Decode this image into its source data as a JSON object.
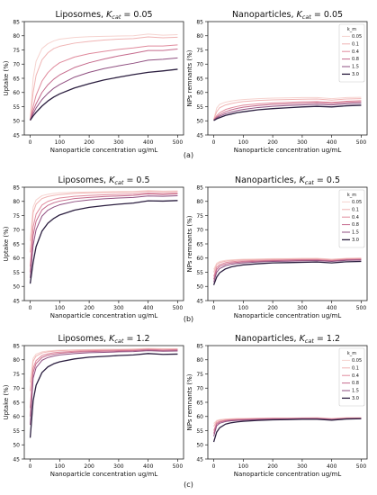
{
  "colors": {
    "series": [
      "#f6d3cf",
      "#f0b4b4",
      "#e08a9c",
      "#c56a8c",
      "#8f4f80",
      "#2b1e3f"
    ],
    "axis": "#222222",
    "text": "#111111"
  },
  "rows": [
    {
      "caption": "(a)",
      "kcat": "0.05"
    },
    {
      "caption": "(b)",
      "kcat": "0.5"
    },
    {
      "caption": "(c)",
      "kcat": "1.2"
    }
  ],
  "chart_data": [
    {
      "type": "line",
      "id": "lipo_a",
      "title": "Liposomes, K_cat = 0.05",
      "title_main": "Liposomes, ",
      "title_sym": "K",
      "title_sub": "cat",
      "title_eq": " = 0.05",
      "xlabel": "Nanoparticle concentration ug/mL",
      "ylabel": "Uptake (%)",
      "xlim": [
        -20,
        520
      ],
      "ylim": [
        45,
        85
      ],
      "xticks": [
        0,
        100,
        200,
        300,
        400,
        500
      ],
      "yticks": [
        45,
        50,
        55,
        60,
        65,
        70,
        75,
        80,
        85
      ],
      "x": [
        0,
        10,
        20,
        40,
        60,
        80,
        100,
        150,
        200,
        250,
        300,
        350,
        400,
        450,
        500
      ],
      "legend": null,
      "series": [
        {
          "values": [
            50.2,
            65,
            71,
            75.5,
            77.2,
            78.2,
            78.8,
            79.4,
            79.7,
            79.8,
            79.9,
            80.0,
            80.6,
            80.2,
            80.4
          ]
        },
        {
          "values": [
            50.2,
            60,
            66,
            71.5,
            74,
            75.5,
            76.3,
            77.4,
            78,
            78.5,
            78.8,
            79.0,
            79.6,
            79.3,
            79.5
          ]
        },
        {
          "values": [
            50.2,
            55,
            59,
            64,
            67,
            69,
            70.5,
            72.5,
            73.7,
            74.5,
            75.2,
            75.7,
            76.4,
            76.4,
            76.8
          ]
        },
        {
          "values": [
            50.2,
            53.5,
            56,
            60,
            62.7,
            64.7,
            66.2,
            68.8,
            70.5,
            71.8,
            72.9,
            73.8,
            74.8,
            74.8,
            75.3
          ]
        },
        {
          "values": [
            50.2,
            52.5,
            54.5,
            57.5,
            59.7,
            61.5,
            62.8,
            65.4,
            67.1,
            68.4,
            69.4,
            70.3,
            71.4,
            71.7,
            72.2
          ]
        },
        {
          "values": [
            50.2,
            51.7,
            53,
            55.2,
            57,
            58.4,
            59.5,
            61.6,
            63.1,
            64.4,
            65.4,
            66.3,
            67.1,
            67.6,
            68.2
          ]
        }
      ]
    },
    {
      "type": "line",
      "id": "nano_a",
      "title": "Nanoparticles, K_cat = 0.05",
      "title_main": "Nanoparticles, ",
      "title_sym": "K",
      "title_sub": "cat",
      "title_eq": " = 0.05",
      "xlabel": "Nanoparticle concentration ug/mL",
      "ylabel": "NPs remnants (%)",
      "xlim": [
        -20,
        520
      ],
      "ylim": [
        45,
        85
      ],
      "xticks": [
        0,
        100,
        200,
        300,
        400,
        500
      ],
      "yticks": [
        45,
        50,
        55,
        60,
        65,
        70,
        75,
        80,
        85
      ],
      "x": [
        0,
        10,
        20,
        40,
        60,
        80,
        100,
        150,
        200,
        250,
        300,
        350,
        400,
        450,
        500
      ],
      "legend": {
        "title": "k_m",
        "labels": [
          "0.05",
          "0.1",
          "0.4",
          "0.8",
          "1.5",
          "3.0"
        ],
        "loc": "upper right"
      },
      "series": [
        {
          "values": [
            50.5,
            54.5,
            55.8,
            56.6,
            57,
            57.3,
            57.5,
            57.8,
            58,
            58.1,
            58.2,
            58.2,
            57.8,
            58.2,
            58.3
          ]
        },
        {
          "values": [
            50.4,
            53.2,
            54.6,
            55.6,
            56.1,
            56.5,
            56.8,
            57.2,
            57.4,
            57.5,
            57.6,
            57.7,
            57.3,
            57.7,
            57.8
          ]
        },
        {
          "values": [
            50.3,
            51.8,
            52.8,
            54,
            54.6,
            55.1,
            55.5,
            56,
            56.3,
            56.5,
            56.7,
            56.8,
            56.5,
            56.9,
            57.1
          ]
        },
        {
          "values": [
            50.2,
            51.3,
            52.1,
            53.2,
            53.9,
            54.4,
            54.8,
            55.4,
            55.8,
            56,
            56.2,
            56.4,
            56.1,
            56.5,
            56.7
          ]
        },
        {
          "values": [
            50.2,
            51,
            51.6,
            52.5,
            53.1,
            53.6,
            54,
            54.7,
            55.1,
            55.4,
            55.6,
            55.8,
            55.6,
            56,
            56.2
          ]
        },
        {
          "values": [
            50.1,
            50.7,
            51.1,
            51.9,
            52.4,
            52.9,
            53.2,
            53.9,
            54.3,
            54.6,
            54.9,
            55.1,
            54.9,
            55.3,
            55.5
          ]
        }
      ]
    },
    {
      "type": "line",
      "id": "lipo_b",
      "title": "Liposomes, K_cat = 0.5",
      "title_main": "Liposomes, ",
      "title_sym": "K",
      "title_sub": "cat",
      "title_eq": " = 0.5",
      "xlabel": "Nanoparticle concentration ug/mL",
      "ylabel": "Uptake (%)",
      "xlim": [
        -20,
        520
      ],
      "ylim": [
        45,
        85
      ],
      "xticks": [
        0,
        100,
        200,
        300,
        400,
        500
      ],
      "yticks": [
        45,
        50,
        55,
        60,
        65,
        70,
        75,
        80,
        85
      ],
      "x": [
        0,
        10,
        20,
        40,
        60,
        80,
        100,
        150,
        200,
        250,
        300,
        350,
        400,
        450,
        500
      ],
      "legend": null,
      "series": [
        {
          "values": [
            66,
            78,
            80.5,
            82,
            82.5,
            82.8,
            83,
            83.2,
            83.3,
            83.4,
            83.5,
            83.5,
            83.8,
            83.6,
            83.7
          ]
        },
        {
          "values": [
            62,
            76,
            79,
            81,
            81.7,
            82.1,
            82.4,
            82.8,
            83,
            83.1,
            83.2,
            83.3,
            83.6,
            83.4,
            83.5
          ]
        },
        {
          "values": [
            57,
            71,
            75.5,
            78.7,
            80,
            80.7,
            81.2,
            81.8,
            82.1,
            82.3,
            82.5,
            82.6,
            83,
            82.8,
            83
          ]
        },
        {
          "values": [
            55,
            68,
            73,
            77,
            78.6,
            79.5,
            80.1,
            81,
            81.4,
            81.7,
            81.9,
            82.1,
            82.6,
            82.4,
            82.6
          ]
        },
        {
          "values": [
            53,
            64.5,
            70,
            74.8,
            76.9,
            78,
            78.8,
            79.9,
            80.5,
            80.9,
            81.2,
            81.4,
            81.9,
            81.8,
            82
          ]
        },
        {
          "values": [
            51,
            58.5,
            64,
            69.5,
            72.3,
            74,
            75.2,
            76.9,
            77.9,
            78.5,
            79,
            79.4,
            80.2,
            80.1,
            80.3
          ]
        }
      ]
    },
    {
      "type": "line",
      "id": "nano_b",
      "title": "Nanoparticles, K_cat = 0.5",
      "title_main": "Nanoparticles, ",
      "title_sym": "K",
      "title_sub": "cat",
      "title_eq": " = 0.5",
      "xlabel": "Nanoparticle concentration ug/mL",
      "ylabel": "NPs remnants (%)",
      "xlim": [
        -20,
        520
      ],
      "ylim": [
        45,
        85
      ],
      "xticks": [
        0,
        100,
        200,
        300,
        400,
        500
      ],
      "yticks": [
        45,
        50,
        55,
        60,
        65,
        70,
        75,
        80,
        85
      ],
      "x": [
        0,
        10,
        20,
        40,
        60,
        80,
        100,
        150,
        200,
        250,
        300,
        350,
        400,
        450,
        500
      ],
      "legend": {
        "title": "k_m",
        "labels": [
          "0.05",
          "0.1",
          "0.4",
          "0.8",
          "1.5",
          "3.0"
        ],
        "loc": "upper right"
      },
      "series": [
        {
          "values": [
            56,
            58.2,
            58.8,
            59.2,
            59.4,
            59.5,
            59.6,
            59.7,
            59.8,
            59.8,
            59.9,
            59.9,
            59.6,
            59.9,
            60
          ]
        },
        {
          "values": [
            55,
            57.7,
            58.4,
            58.9,
            59.1,
            59.3,
            59.4,
            59.5,
            59.6,
            59.7,
            59.7,
            59.8,
            59.5,
            59.8,
            59.9
          ]
        },
        {
          "values": [
            53.5,
            56.8,
            57.7,
            58.4,
            58.7,
            58.9,
            59,
            59.2,
            59.3,
            59.4,
            59.5,
            59.5,
            59.2,
            59.6,
            59.7
          ]
        },
        {
          "values": [
            52.5,
            56,
            57.1,
            57.9,
            58.3,
            58.5,
            58.7,
            58.9,
            59.1,
            59.2,
            59.3,
            59.3,
            59,
            59.4,
            59.5
          ]
        },
        {
          "values": [
            51.5,
            55,
            56.3,
            57.3,
            57.8,
            58.1,
            58.3,
            58.6,
            58.8,
            58.9,
            59,
            59.1,
            58.8,
            59.2,
            59.3
          ]
        },
        {
          "values": [
            50.5,
            53.3,
            54.8,
            56.2,
            56.9,
            57.3,
            57.6,
            58,
            58.3,
            58.4,
            58.5,
            58.6,
            58.3,
            58.7,
            58.8
          ]
        }
      ]
    },
    {
      "type": "line",
      "id": "lipo_c",
      "title": "Liposomes, K_cat = 1.2",
      "title_main": "Liposomes, ",
      "title_sym": "K",
      "title_sub": "cat",
      "title_eq": " = 1.2",
      "xlabel": "Nanoparticle concentration ug/mL",
      "ylabel": "Uptake (%)",
      "xlim": [
        -20,
        520
      ],
      "ylim": [
        45,
        85
      ],
      "xticks": [
        0,
        100,
        200,
        300,
        400,
        500
      ],
      "yticks": [
        45,
        50,
        55,
        60,
        65,
        70,
        75,
        80,
        85
      ],
      "x": [
        0,
        10,
        20,
        40,
        60,
        80,
        100,
        150,
        200,
        250,
        300,
        350,
        400,
        450,
        500
      ],
      "legend": null,
      "series": [
        {
          "values": [
            72,
            80.5,
            82,
            82.8,
            83.1,
            83.3,
            83.4,
            83.5,
            83.6,
            83.7,
            83.7,
            83.8,
            84,
            83.9,
            83.9
          ]
        },
        {
          "values": [
            69,
            79.5,
            81.3,
            82.4,
            82.8,
            83,
            83.2,
            83.4,
            83.5,
            83.6,
            83.6,
            83.7,
            83.9,
            83.8,
            83.8
          ]
        },
        {
          "values": [
            63,
            77,
            79.7,
            81.5,
            82.1,
            82.5,
            82.7,
            83,
            83.2,
            83.3,
            83.4,
            83.4,
            83.7,
            83.5,
            83.6
          ]
        },
        {
          "values": [
            60,
            75.5,
            78.7,
            80.8,
            81.6,
            82,
            82.3,
            82.7,
            82.9,
            83,
            83.1,
            83.2,
            83.5,
            83.3,
            83.4
          ]
        },
        {
          "values": [
            57,
            73.5,
            77.2,
            79.8,
            80.8,
            81.3,
            81.7,
            82.2,
            82.5,
            82.6,
            82.8,
            82.9,
            83.2,
            83,
            83.1
          ]
        },
        {
          "values": [
            52.5,
            65.5,
            71,
            75.5,
            77.5,
            78.6,
            79.3,
            80.3,
            80.9,
            81.2,
            81.5,
            81.7,
            82.2,
            81.9,
            82
          ]
        }
      ]
    },
    {
      "type": "line",
      "id": "nano_c",
      "title": "Nanoparticles, K_cat = 1.2",
      "title_main": "Nanoparticles, ",
      "title_sym": "K",
      "title_sub": "cat",
      "title_eq": " = 1.2",
      "xlabel": "Nanoparticle concentration ug/mL",
      "ylabel": "NPs remnants (%)",
      "xlim": [
        -20,
        520
      ],
      "ylim": [
        45,
        85
      ],
      "xticks": [
        0,
        100,
        200,
        300,
        400,
        500
      ],
      "yticks": [
        45,
        50,
        55,
        60,
        65,
        70,
        75,
        80,
        85
      ],
      "x": [
        0,
        10,
        20,
        40,
        60,
        80,
        100,
        150,
        200,
        250,
        300,
        350,
        400,
        450,
        500
      ],
      "legend": {
        "title": "k_m",
        "labels": [
          "0.05",
          "0.1",
          "0.4",
          "0.8",
          "1.5",
          "3.0"
        ],
        "loc": "upper right"
      },
      "series": [
        {
          "values": [
            57.5,
            58.6,
            58.9,
            59.1,
            59.2,
            59.3,
            59.3,
            59.4,
            59.5,
            59.5,
            59.5,
            59.6,
            59.3,
            59.6,
            59.6
          ]
        },
        {
          "values": [
            56.5,
            58.3,
            58.7,
            59,
            59.1,
            59.2,
            59.2,
            59.3,
            59.4,
            59.4,
            59.5,
            59.5,
            59.2,
            59.5,
            59.5
          ]
        },
        {
          "values": [
            55,
            57.8,
            58.3,
            58.7,
            58.9,
            59,
            59.1,
            59.2,
            59.3,
            59.3,
            59.4,
            59.4,
            59.1,
            59.4,
            59.4
          ]
        },
        {
          "values": [
            54,
            57.3,
            58,
            58.5,
            58.7,
            58.8,
            58.9,
            59.1,
            59.2,
            59.2,
            59.3,
            59.3,
            59,
            59.3,
            59.4
          ]
        },
        {
          "values": [
            53,
            56.7,
            57.6,
            58.2,
            58.5,
            58.6,
            58.7,
            58.9,
            59,
            59.1,
            59.2,
            59.2,
            58.9,
            59.2,
            59.3
          ]
        },
        {
          "values": [
            51,
            54.5,
            56,
            57.3,
            57.8,
            58.1,
            58.3,
            58.6,
            58.8,
            58.9,
            59,
            59,
            58.7,
            59.1,
            59.2
          ]
        }
      ]
    }
  ]
}
